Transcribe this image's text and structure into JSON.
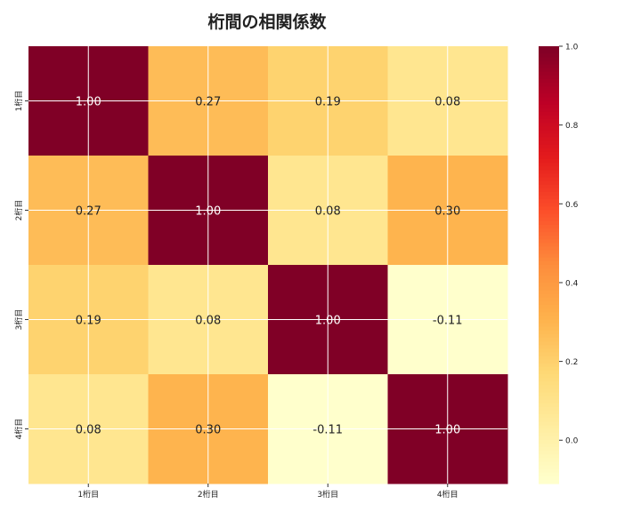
{
  "chart_data": {
    "type": "heatmap",
    "title": "桁間の相関係数",
    "x_labels": [
      "1桁目",
      "2桁目",
      "3桁目",
      "4桁目"
    ],
    "y_labels": [
      "1桁目",
      "2桁目",
      "3桁目",
      "4桁目"
    ],
    "values": [
      [
        1.0,
        0.27,
        0.19,
        0.08
      ],
      [
        0.27,
        1.0,
        0.08,
        0.3
      ],
      [
        0.19,
        0.08,
        1.0,
        -0.11
      ],
      [
        0.08,
        0.3,
        -0.11,
        1.0
      ]
    ],
    "value_labels": [
      [
        "1.00",
        "0.27",
        "0.19",
        "0.08"
      ],
      [
        "0.27",
        "1.00",
        "0.08",
        "0.30"
      ],
      [
        "0.19",
        "0.08",
        "1.00",
        "-0.11"
      ],
      [
        "0.08",
        "0.30",
        "-0.11",
        "1.00"
      ]
    ],
    "colormap": "YlOrRd",
    "color_range": [
      -0.11,
      1.0
    ],
    "colorbar_ticks": [
      "0.0",
      "0.2",
      "0.4",
      "0.6",
      "0.8",
      "1.0"
    ],
    "grid": true,
    "colorbar_placement": "right"
  }
}
